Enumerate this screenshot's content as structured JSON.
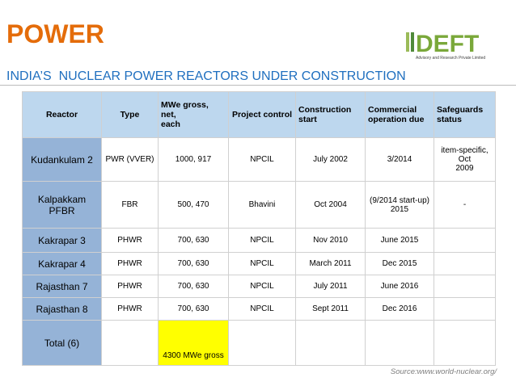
{
  "header": {
    "title": "POWER",
    "subtitle": "INDIA’S  NUCLEAR POWER REACTORS UNDER CONSTRUCTION",
    "logo": {
      "name": "DEFT",
      "tagline": "Advisory and Research Private Limited"
    }
  },
  "table": {
    "columns": [
      "Reactor",
      "Type",
      "MWe gross,\nnet,\neach",
      "Project control",
      "Construction\nstart",
      "Commercial\noperation due",
      "Safeguards\nstatus"
    ],
    "rows": [
      [
        "Kudankulam 2",
        "PWR (VVER)",
        "1000, 917",
        "NPCIL",
        "July 2002",
        "3/2014",
        "item-specific, Oct\n2009"
      ],
      [
        "Kalpakkam PFBR",
        "FBR",
        "500, 470",
        "Bhavini",
        "Oct 2004",
        "(9/2014 start-up)\n2015",
        "-"
      ],
      [
        "Kakrapar 3",
        "PHWR",
        "700, 630",
        "NPCIL",
        "Nov 2010",
        "June 2015"
      ],
      [
        "Kakrapar 4",
        "PHWR",
        "700, 630",
        "NPCIL",
        "March 2011",
        "Dec 2015"
      ],
      [
        "Rajasthan 7",
        "PHWR",
        "700, 630",
        "NPCIL",
        "July 2011",
        "June 2016"
      ],
      [
        "Rajasthan 8",
        "PHWR",
        "700, 630",
        "NPCIL",
        "Sept 2011",
        "Dec 2016"
      ]
    ],
    "total": {
      "label": "Total (6)",
      "capacity": "4300 MWe gross"
    }
  },
  "footer": {
    "source": "Source:www.world-nuclear.org/"
  }
}
